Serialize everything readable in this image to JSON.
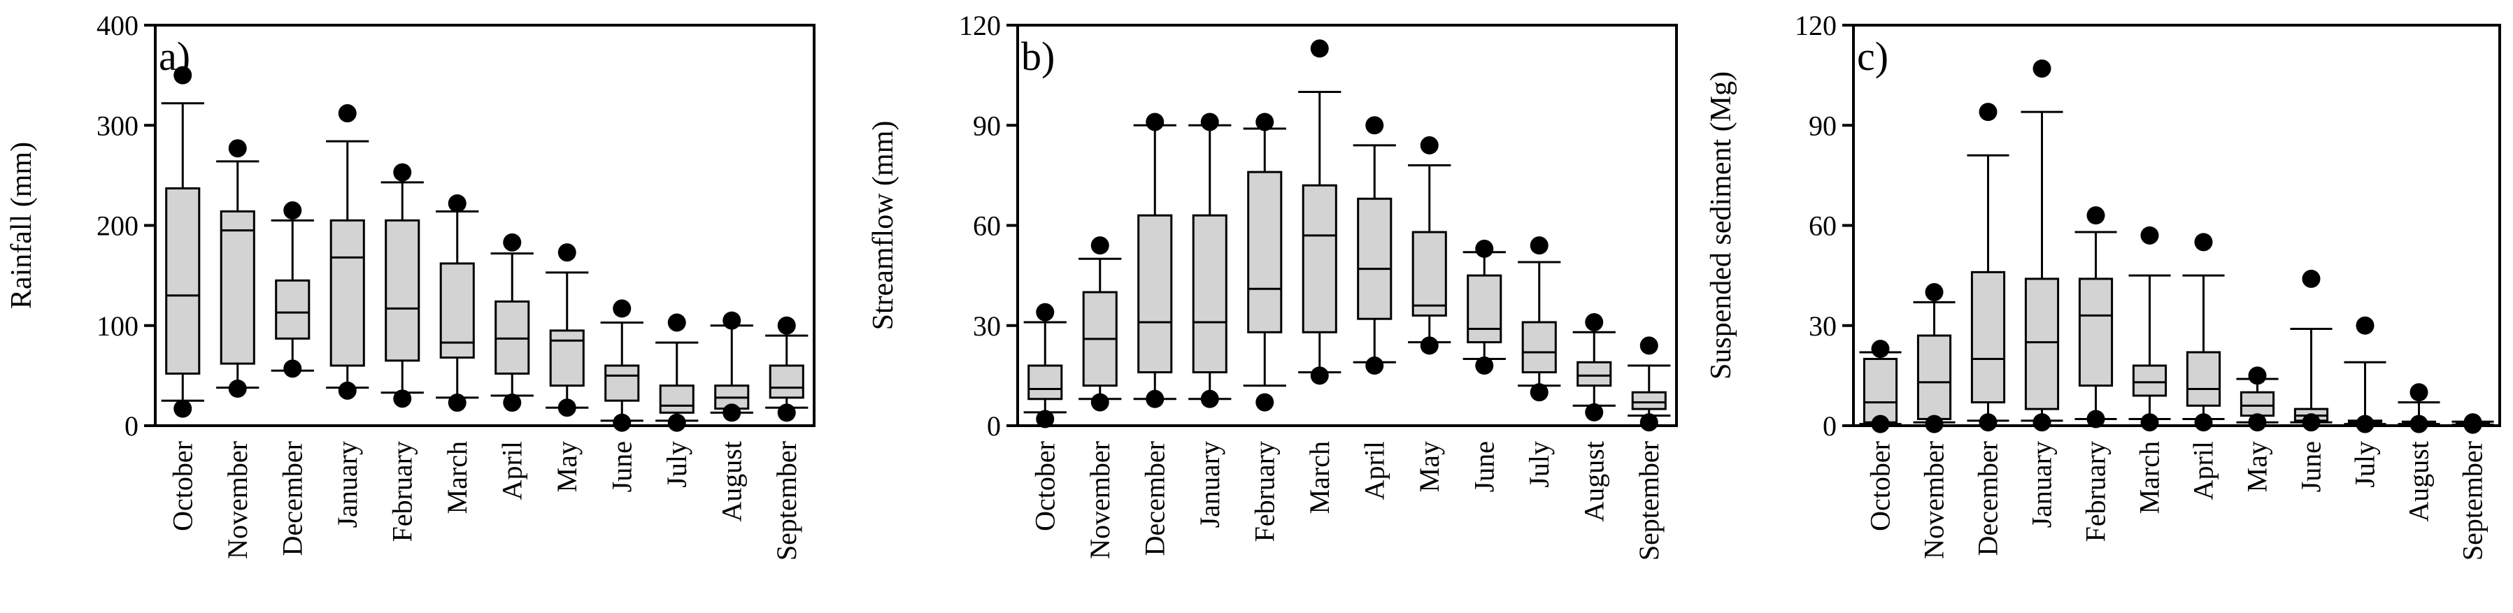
{
  "colors": {
    "box_fill": "#d3d3d3",
    "stroke": "#000000",
    "background": "#ffffff"
  },
  "chart_data": [
    {
      "type": "box",
      "panel_label": "a)",
      "title": "",
      "xlabel": "",
      "ylabel": "Rainfall (mm)",
      "ylim": [
        0,
        400
      ],
      "yticks": [
        "0",
        "100",
        "200",
        "300",
        "400"
      ],
      "ytick_values": [
        0,
        100,
        200,
        300,
        400
      ],
      "categories": [
        "October",
        "November",
        "December",
        "January",
        "February",
        "March",
        "April",
        "May",
        "June",
        "July",
        "August",
        "September"
      ],
      "boxes": [
        {
          "whisker_low": 25,
          "q1": 52,
          "median": 130,
          "q3": 237,
          "whisker_high": 322,
          "outliers": [
            17,
            350
          ]
        },
        {
          "whisker_low": 38,
          "q1": 62,
          "median": 195,
          "q3": 214,
          "whisker_high": 264,
          "outliers": [
            37,
            277
          ]
        },
        {
          "whisker_low": 55,
          "q1": 87,
          "median": 113,
          "q3": 145,
          "whisker_high": 205,
          "outliers": [
            57,
            215
          ]
        },
        {
          "whisker_low": 38,
          "q1": 60,
          "median": 168,
          "q3": 205,
          "whisker_high": 284,
          "outliers": [
            35,
            312
          ]
        },
        {
          "whisker_low": 33,
          "q1": 65,
          "median": 117,
          "q3": 205,
          "whisker_high": 243,
          "outliers": [
            27,
            253
          ]
        },
        {
          "whisker_low": 28,
          "q1": 68,
          "median": 83,
          "q3": 162,
          "whisker_high": 214,
          "outliers": [
            23,
            222
          ]
        },
        {
          "whisker_low": 30,
          "q1": 52,
          "median": 87,
          "q3": 124,
          "whisker_high": 172,
          "outliers": [
            23,
            183
          ]
        },
        {
          "whisker_low": 18,
          "q1": 40,
          "median": 85,
          "q3": 95,
          "whisker_high": 153,
          "outliers": [
            18,
            173
          ]
        },
        {
          "whisker_low": 5,
          "q1": 25,
          "median": 50,
          "q3": 60,
          "whisker_high": 103,
          "outliers": [
            3,
            117
          ]
        },
        {
          "whisker_low": 5,
          "q1": 13,
          "median": 20,
          "q3": 40,
          "whisker_high": 83,
          "outliers": [
            3,
            103
          ]
        },
        {
          "whisker_low": 13,
          "q1": 17,
          "median": 28,
          "q3": 40,
          "whisker_high": 100,
          "outliers": [
            13,
            105
          ]
        },
        {
          "whisker_low": 18,
          "q1": 28,
          "median": 38,
          "q3": 60,
          "whisker_high": 90,
          "outliers": [
            13,
            100
          ]
        }
      ]
    },
    {
      "type": "box",
      "panel_label": "b)",
      "title": "",
      "xlabel": "",
      "ylabel": "Streamflow (mm)",
      "ylim": [
        0,
        120
      ],
      "yticks": [
        "0",
        "30",
        "60",
        "90",
        "120"
      ],
      "ytick_values": [
        0,
        30,
        60,
        90,
        120
      ],
      "categories": [
        "October",
        "November",
        "December",
        "January",
        "February",
        "March",
        "April",
        "May",
        "June",
        "July",
        "August",
        "September"
      ],
      "boxes": [
        {
          "whisker_low": 4,
          "q1": 8,
          "median": 11,
          "q3": 18,
          "whisker_high": 31,
          "outliers": [
            2,
            34
          ]
        },
        {
          "whisker_low": 8,
          "q1": 12,
          "median": 26,
          "q3": 40,
          "whisker_high": 50,
          "outliers": [
            7,
            54
          ]
        },
        {
          "whisker_low": 8,
          "q1": 16,
          "median": 31,
          "q3": 63,
          "whisker_high": 90,
          "outliers": [
            8,
            91
          ]
        },
        {
          "whisker_low": 8,
          "q1": 16,
          "median": 31,
          "q3": 63,
          "whisker_high": 90,
          "outliers": [
            8,
            91
          ]
        },
        {
          "whisker_low": 12,
          "q1": 28,
          "median": 41,
          "q3": 76,
          "whisker_high": 89,
          "outliers": [
            7,
            91
          ]
        },
        {
          "whisker_low": 16,
          "q1": 28,
          "median": 57,
          "q3": 72,
          "whisker_high": 100,
          "outliers": [
            15,
            113
          ]
        },
        {
          "whisker_low": 19,
          "q1": 32,
          "median": 47,
          "q3": 68,
          "whisker_high": 84,
          "outliers": [
            18,
            90
          ]
        },
        {
          "whisker_low": 25,
          "q1": 33,
          "median": 36,
          "q3": 58,
          "whisker_high": 78,
          "outliers": [
            24,
            84
          ]
        },
        {
          "whisker_low": 20,
          "q1": 25,
          "median": 29,
          "q3": 45,
          "whisker_high": 52,
          "outliers": [
            18,
            53
          ]
        },
        {
          "whisker_low": 12,
          "q1": 16,
          "median": 22,
          "q3": 31,
          "whisker_high": 49,
          "outliers": [
            10,
            54
          ]
        },
        {
          "whisker_low": 6,
          "q1": 12,
          "median": 15,
          "q3": 19,
          "whisker_high": 28,
          "outliers": [
            4,
            31
          ]
        },
        {
          "whisker_low": 3,
          "q1": 5,
          "median": 7,
          "q3": 10,
          "whisker_high": 18,
          "outliers": [
            1,
            24
          ]
        }
      ]
    },
    {
      "type": "box",
      "panel_label": "c)",
      "title": "",
      "xlabel": "",
      "ylabel": "Suspended sediment (Mg)",
      "ylim": [
        0,
        120
      ],
      "yticks": [
        "0",
        "30",
        "60",
        "90",
        "120"
      ],
      "ytick_values": [
        0,
        30,
        60,
        90,
        120
      ],
      "categories": [
        "October",
        "November",
        "December",
        "January",
        "February",
        "March",
        "April",
        "May",
        "June",
        "July",
        "August",
        "September"
      ],
      "boxes": [
        {
          "whisker_low": 0.5,
          "q1": 1,
          "median": 7,
          "q3": 20,
          "whisker_high": 22,
          "outliers": [
            0.5,
            23
          ]
        },
        {
          "whisker_low": 1,
          "q1": 2,
          "median": 13,
          "q3": 27,
          "whisker_high": 37,
          "outliers": [
            0.5,
            40
          ]
        },
        {
          "whisker_low": 1.5,
          "q1": 7,
          "median": 20,
          "q3": 46,
          "whisker_high": 81,
          "outliers": [
            1,
            94
          ]
        },
        {
          "whisker_low": 1.5,
          "q1": 5,
          "median": 25,
          "q3": 44,
          "whisker_high": 94,
          "outliers": [
            1,
            107
          ]
        },
        {
          "whisker_low": 2,
          "q1": 12,
          "median": 33,
          "q3": 44,
          "whisker_high": 58,
          "outliers": [
            2,
            63
          ]
        },
        {
          "whisker_low": 2,
          "q1": 9,
          "median": 13,
          "q3": 18,
          "whisker_high": 45,
          "outliers": [
            1,
            57
          ]
        },
        {
          "whisker_low": 2,
          "q1": 6,
          "median": 11,
          "q3": 22,
          "whisker_high": 45,
          "outliers": [
            1,
            55
          ]
        },
        {
          "whisker_low": 1,
          "q1": 3,
          "median": 6,
          "q3": 10,
          "whisker_high": 14,
          "outliers": [
            1,
            15
          ]
        },
        {
          "whisker_low": 1,
          "q1": 1.5,
          "median": 3,
          "q3": 5,
          "whisker_high": 29,
          "outliers": [
            1,
            44
          ]
        },
        {
          "whisker_low": 0.5,
          "q1": 0.8,
          "median": 1,
          "q3": 1.5,
          "whisker_high": 19,
          "outliers": [
            0.5,
            30
          ]
        },
        {
          "whisker_low": 0.5,
          "q1": 0.7,
          "median": 1,
          "q3": 1.2,
          "whisker_high": 7,
          "outliers": [
            0.5,
            10
          ]
        },
        {
          "whisker_low": 0.3,
          "q1": 0.5,
          "median": 0.7,
          "q3": 1,
          "whisker_high": 1.2,
          "outliers": [
            0.3,
            1
          ]
        }
      ]
    }
  ]
}
